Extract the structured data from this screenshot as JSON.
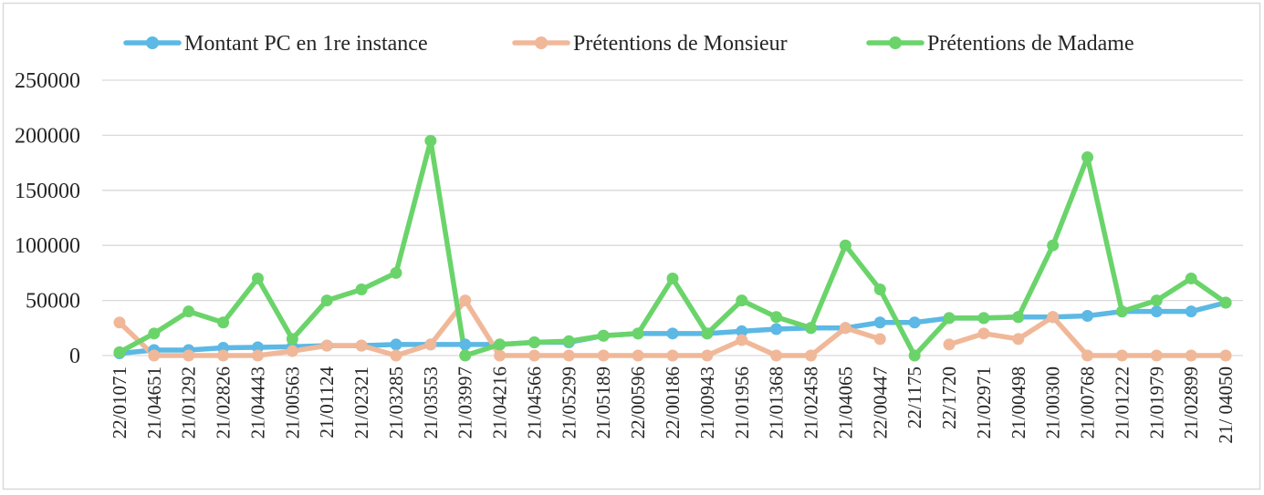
{
  "chart_data": {
    "type": "line",
    "title": "",
    "xlabel": "",
    "ylabel": "",
    "ylim": [
      0,
      250000
    ],
    "yticks": [
      0,
      50000,
      100000,
      150000,
      200000,
      250000
    ],
    "grid": "horizontal",
    "legend_position": "top",
    "categories": [
      "22/01071",
      "21/04651",
      "21/01292",
      "21/02826",
      "21/04443",
      "21/00563",
      "21/01124",
      "21/02321",
      "21/03285",
      "21/03553",
      "21/03997",
      "21/04216",
      "21/04566",
      "21/05299",
      "21/05189",
      "22/00596",
      "22/00186",
      "21/00943",
      "21/01956",
      "21/01368",
      "21/02458",
      "21/04065",
      "22/00447",
      "22/1175",
      "22/1720",
      "21/02971",
      "21/00498",
      "21/00300",
      "21/00768",
      "21/01222",
      "21/01979",
      "21/02899",
      "21/ 04050"
    ],
    "series": [
      {
        "name": "Montant PC en 1re instance",
        "color": "#5cb8e4",
        "values": [
          2000,
          5000,
          5000,
          7000,
          7500,
          8000,
          9000,
          9000,
          10000,
          10000,
          10000,
          10000,
          12000,
          12000,
          18000,
          20000,
          20000,
          20000,
          22000,
          24000,
          25000,
          25000,
          30000,
          30000,
          34000,
          34000,
          35000,
          35000,
          36000,
          40000,
          40000,
          40000,
          48000
        ]
      },
      {
        "name": "Prétentions de Monsieur",
        "color": "#f0b899",
        "values": [
          30000,
          0,
          0,
          0,
          0,
          4000,
          9000,
          9000,
          0,
          10000,
          50000,
          0,
          0,
          0,
          0,
          0,
          0,
          0,
          14000,
          0,
          0,
          25000,
          15000,
          null,
          10000,
          20000,
          15000,
          35000,
          0,
          0,
          0,
          0,
          0
        ]
      },
      {
        "name": "Prétentions de Madame",
        "color": "#6ad46a",
        "values": [
          3000,
          20000,
          40000,
          30000,
          70000,
          15000,
          50000,
          60000,
          75000,
          195000,
          0,
          10000,
          12000,
          13000,
          18000,
          20000,
          70000,
          20000,
          50000,
          35000,
          25000,
          100000,
          60000,
          0,
          34000,
          34000,
          35000,
          100000,
          180000,
          40000,
          50000,
          70000,
          48000
        ]
      }
    ]
  }
}
